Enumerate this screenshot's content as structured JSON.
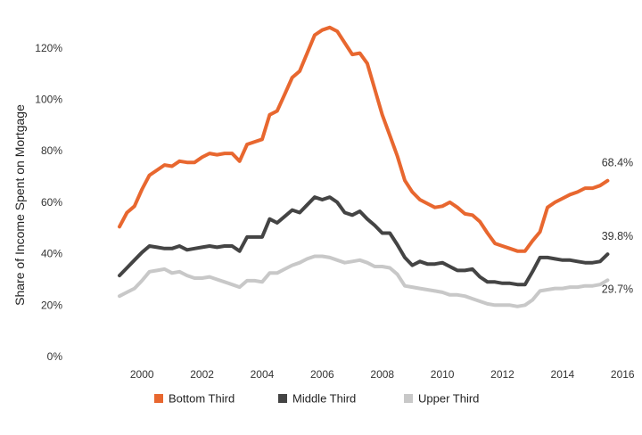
{
  "chart_data": {
    "type": "line",
    "title": "",
    "xlabel": "",
    "ylabel": "Share of Income Spent on Mortgage",
    "ylim": [
      0,
      130
    ],
    "xlim": [
      1997.5,
      2016.2
    ],
    "grid": false,
    "legend_position": "bottom",
    "y_ticks": [
      0,
      20,
      40,
      60,
      80,
      100,
      120
    ],
    "y_tick_labels": [
      "0%",
      "20%",
      "40%",
      "60%",
      "80%",
      "100%",
      "120%"
    ],
    "x_ticks": [
      2000,
      2002,
      2004,
      2006,
      2008,
      2010,
      2012,
      2014,
      2016
    ],
    "x_tick_labels": [
      "2000",
      "2002",
      "2004",
      "2006",
      "2008",
      "2010",
      "2012",
      "2014",
      "2016"
    ],
    "series": [
      {
        "name": "Bottom Third",
        "color": "#E8672F",
        "end_label": "68.4%",
        "x": [
          1999.25,
          1999.5,
          1999.75,
          2000,
          2000.25,
          2000.5,
          2000.75,
          2001,
          2001.25,
          2001.5,
          2001.75,
          2002,
          2002.25,
          2002.5,
          2002.75,
          2003,
          2003.25,
          2003.5,
          2003.75,
          2004,
          2004.25,
          2004.5,
          2004.75,
          2005,
          2005.25,
          2005.5,
          2005.75,
          2006,
          2006.25,
          2006.5,
          2006.75,
          2007,
          2007.25,
          2007.5,
          2007.75,
          2008,
          2008.25,
          2008.5,
          2008.75,
          2009,
          2009.25,
          2009.5,
          2009.75,
          2010,
          2010.25,
          2010.5,
          2010.75,
          2011,
          2011.25,
          2011.5,
          2011.75,
          2012,
          2012.25,
          2012.5,
          2012.75,
          2013,
          2013.25,
          2013.5,
          2013.75,
          2014,
          2014.25,
          2014.5,
          2014.75,
          2015,
          2015.25,
          2015.5
        ],
        "values": [
          50.5,
          56,
          58.5,
          65,
          70.5,
          72.5,
          74.5,
          74,
          76,
          75.5,
          75.5,
          77.5,
          79,
          78.5,
          79,
          79,
          76,
          82.5,
          83.5,
          84.5,
          94,
          95.5,
          102,
          108.5,
          111,
          118,
          125,
          127,
          128,
          126.5,
          122,
          117.5,
          118,
          114,
          104,
          94,
          86,
          78,
          68.5,
          64,
          61,
          59.5,
          58,
          58.5,
          60,
          58,
          55.5,
          55,
          52.5,
          48,
          44,
          43,
          42,
          41,
          41,
          45,
          48.5,
          58,
          60,
          61.5,
          63,
          64,
          65.5,
          65.5,
          66.5,
          68.4
        ]
      },
      {
        "name": "Middle Third",
        "color": "#444444",
        "end_label": "39.8%",
        "x": [
          1999.25,
          1999.5,
          1999.75,
          2000,
          2000.25,
          2000.5,
          2000.75,
          2001,
          2001.25,
          2001.5,
          2001.75,
          2002,
          2002.25,
          2002.5,
          2002.75,
          2003,
          2003.25,
          2003.5,
          2003.75,
          2004,
          2004.25,
          2004.5,
          2004.75,
          2005,
          2005.25,
          2005.5,
          2005.75,
          2006,
          2006.25,
          2006.5,
          2006.75,
          2007,
          2007.25,
          2007.5,
          2007.75,
          2008,
          2008.25,
          2008.5,
          2008.75,
          2009,
          2009.25,
          2009.5,
          2009.75,
          2010,
          2010.25,
          2010.5,
          2010.75,
          2011,
          2011.25,
          2011.5,
          2011.75,
          2012,
          2012.25,
          2012.5,
          2012.75,
          2013,
          2013.25,
          2013.5,
          2013.75,
          2014,
          2014.25,
          2014.5,
          2014.75,
          2015,
          2015.25,
          2015.5
        ],
        "values": [
          31.5,
          34.5,
          37.5,
          40.5,
          43,
          42.5,
          42,
          42,
          43,
          41.5,
          42,
          42.5,
          43,
          42.5,
          43,
          43,
          41,
          46.5,
          46.5,
          46.5,
          53.5,
          52,
          54.5,
          57,
          56,
          59,
          62,
          61,
          62,
          60,
          56,
          55,
          56.5,
          53.5,
          51,
          48,
          48,
          43.5,
          38.5,
          35.5,
          37,
          36,
          36,
          36.5,
          35,
          33.5,
          33.5,
          34,
          31,
          29,
          29,
          28.5,
          28.5,
          28,
          28,
          33,
          38.5,
          38.5,
          38,
          37.5,
          37.5,
          37,
          36.5,
          36.5,
          37,
          39.8
        ]
      },
      {
        "name": "Upper Third",
        "color": "#C8C8C8",
        "end_label": "29.7%",
        "x": [
          1999.25,
          1999.5,
          1999.75,
          2000,
          2000.25,
          2000.5,
          2000.75,
          2001,
          2001.25,
          2001.5,
          2001.75,
          2002,
          2002.25,
          2002.5,
          2002.75,
          2003,
          2003.25,
          2003.5,
          2003.75,
          2004,
          2004.25,
          2004.5,
          2004.75,
          2005,
          2005.25,
          2005.5,
          2005.75,
          2006,
          2006.25,
          2006.5,
          2006.75,
          2007,
          2007.25,
          2007.5,
          2007.75,
          2008,
          2008.25,
          2008.5,
          2008.75,
          2009,
          2009.25,
          2009.5,
          2009.75,
          2010,
          2010.25,
          2010.5,
          2010.75,
          2011,
          2011.25,
          2011.5,
          2011.75,
          2012,
          2012.25,
          2012.5,
          2012.75,
          2013,
          2013.25,
          2013.5,
          2013.75,
          2014,
          2014.25,
          2014.5,
          2014.75,
          2015,
          2015.25,
          2015.5
        ],
        "values": [
          23.5,
          25,
          26.5,
          29.5,
          33,
          33.5,
          34,
          32.5,
          33,
          31.5,
          30.5,
          30.5,
          31,
          30,
          29,
          28,
          27,
          29.5,
          29.5,
          29,
          32.5,
          32.5,
          34,
          35.5,
          36.5,
          38,
          39,
          39,
          38.5,
          37.5,
          36.5,
          37,
          37.5,
          36.5,
          35,
          35,
          34.5,
          32,
          27.5,
          27,
          26.5,
          26,
          25.5,
          25,
          24,
          24,
          23.5,
          22.5,
          21.5,
          20.5,
          20,
          20,
          20,
          19.5,
          20,
          22,
          25.5,
          26,
          26.5,
          26.5,
          27,
          27,
          27.5,
          27.5,
          28,
          29.7
        ]
      }
    ]
  }
}
